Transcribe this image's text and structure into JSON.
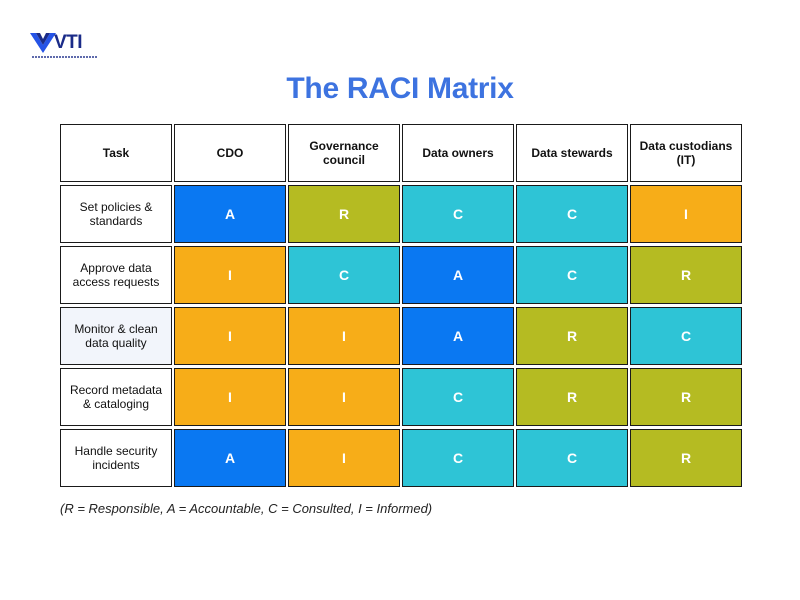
{
  "logo": {
    "text": "VTI",
    "icon": "vti-chevron-logo"
  },
  "title": "The RACI Matrix",
  "colors": {
    "A": "#0a78f2",
    "R": "#b5bb22",
    "C": "#2ec4d6",
    "I": "#f7ad18"
  },
  "matrix": {
    "headers": [
      "Task",
      "CDO",
      "Governance council",
      "Data owners",
      "Data stewards",
      "Data custodians (IT)"
    ],
    "rows": [
      {
        "task": "Set policies & standards",
        "cells": [
          "A",
          "R",
          "C",
          "C",
          "I"
        ]
      },
      {
        "task": "Approve data access requests",
        "cells": [
          "I",
          "C",
          "A",
          "C",
          "R"
        ]
      },
      {
        "task": "Monitor & clean data quality",
        "cells": [
          "I",
          "I",
          "A",
          "R",
          "C"
        ]
      },
      {
        "task": "Record metadata & cataloging",
        "cells": [
          "I",
          "I",
          "C",
          "R",
          "R"
        ]
      },
      {
        "task": "Handle security incidents",
        "cells": [
          "A",
          "I",
          "C",
          "C",
          "R"
        ]
      }
    ]
  },
  "legend": "(R = Responsible, A = Accountable, C = Consulted, I = Informed)"
}
